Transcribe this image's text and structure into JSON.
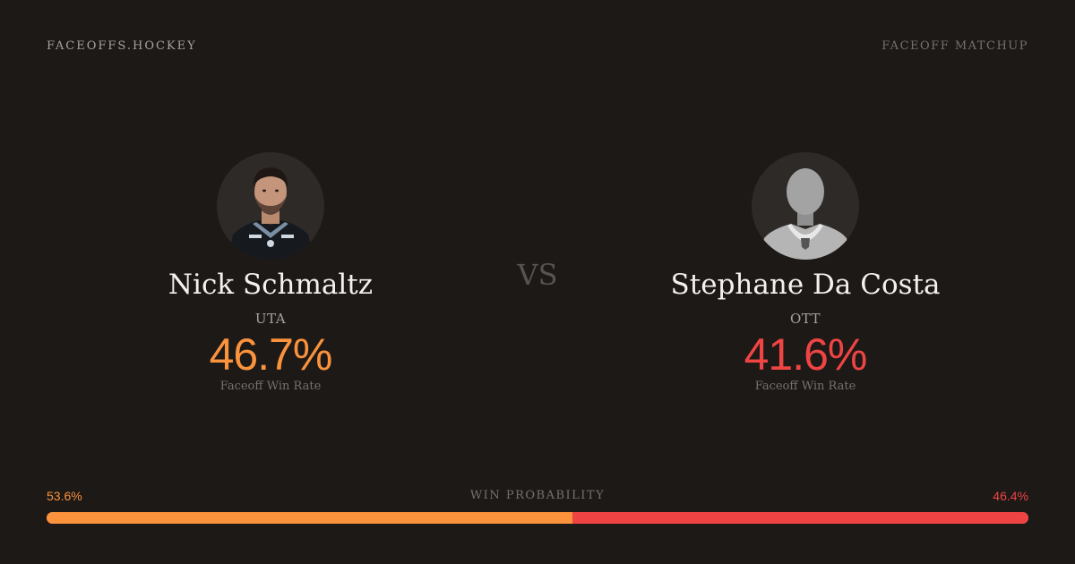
{
  "header": {
    "brand": "FACEOFFS.HOCKEY",
    "right_label": "FACEOFF MATCHUP"
  },
  "players": [
    {
      "name": "Nick Schmaltz",
      "team": "UTA",
      "win_rate": "46.7%",
      "win_rate_label": "Faceoff Win Rate",
      "avatar_icon": "player-photo",
      "color": "#fb923c"
    },
    {
      "name": "Stephane Da Costa",
      "team": "OTT",
      "win_rate": "41.6%",
      "win_rate_label": "Faceoff Win Rate",
      "avatar_icon": "silhouette-icon",
      "color": "#ef4444"
    }
  ],
  "vs_label": "VS",
  "win_probability": {
    "title": "WIN PROBABILITY",
    "left_label": "53.6%",
    "right_label": "46.4%",
    "left_value": 53.6,
    "right_value": 46.4
  },
  "colors": {
    "background": "#1c1917",
    "accent_left": "#fb923c",
    "accent_right": "#ef4444"
  }
}
